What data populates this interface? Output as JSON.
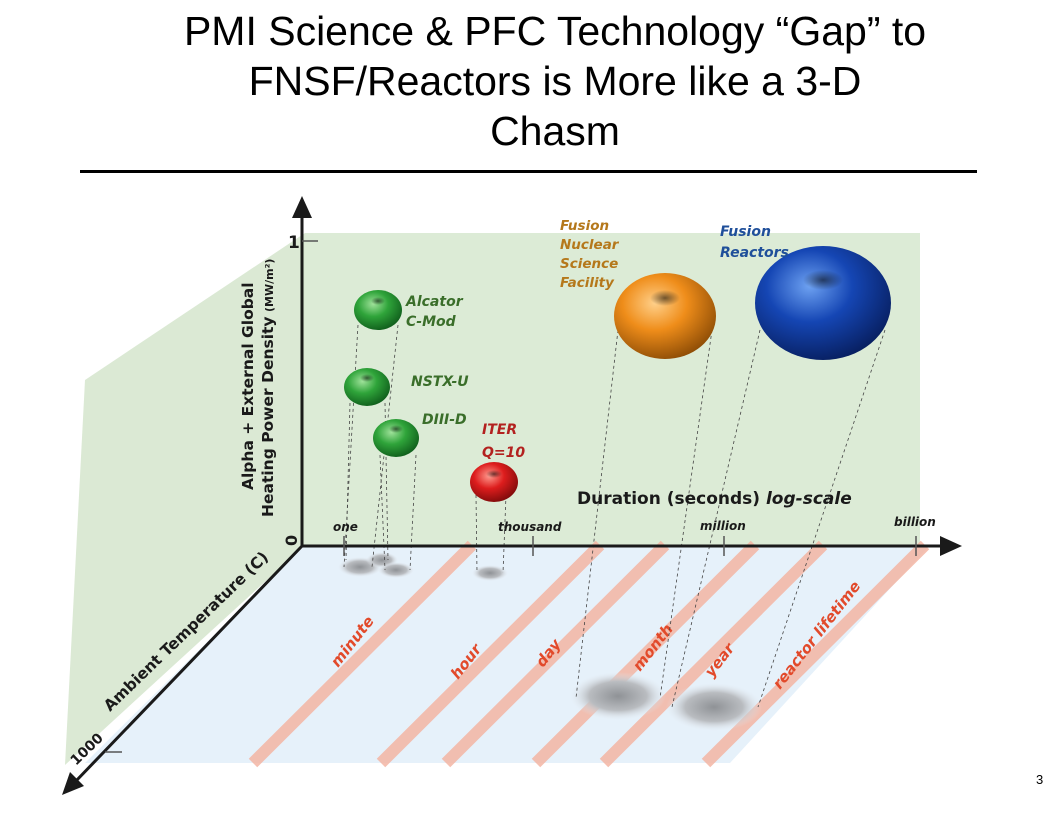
{
  "title_lines": [
    "PMI Science & PFC Technology “Gap” to",
    "FNSF/Reactors is More like a 3-D",
    "Chasm"
  ],
  "page_number": "3",
  "colors": {
    "back_plane": "#dcebd6",
    "floor_plane": "#e6f1fa",
    "side_plane": "#dbe9d4",
    "time_stripe": "#f4b6a4",
    "time_label": "#e24a2b",
    "facility_label_green": "#3a6e2a",
    "iter_label": "#b3211f",
    "fnsf_label": "#b5781b",
    "reactor_label": "#1f4f9a"
  },
  "axes": {
    "y_label_line1": "Alpha + External Global",
    "y_label_line2": "Heating Power Density",
    "y_unit": "(MW/m²)",
    "y_tick_top": "1",
    "y_tick_origin": "0",
    "x_label_bold": "Duration (seconds)",
    "x_label_italic": "log-scale",
    "x_ticks": [
      "one",
      "thousand",
      "million",
      "billion"
    ],
    "z_label": "Ambient Temperature (C)",
    "z_tick": "1000"
  },
  "time_markers": [
    "minute",
    "hour",
    "day",
    "month",
    "year",
    "reactor lifetime"
  ],
  "facilities": [
    {
      "id": "alcator",
      "lines": [
        "Alcator",
        "C-Mod"
      ],
      "color": "green"
    },
    {
      "id": "nstx",
      "lines": [
        "NSTX-U"
      ],
      "color": "green"
    },
    {
      "id": "diiid",
      "lines": [
        "DIII-D"
      ],
      "color": "green"
    },
    {
      "id": "iter",
      "lines": [
        "ITER",
        "Q=10"
      ],
      "color": "red"
    },
    {
      "id": "fnsf",
      "lines": [
        "Fusion",
        "Nuclear",
        "Science",
        "Facility"
      ],
      "color": "orange"
    },
    {
      "id": "reactors",
      "lines": [
        "Fusion",
        "Reactors"
      ],
      "color": "blue"
    }
  ]
}
